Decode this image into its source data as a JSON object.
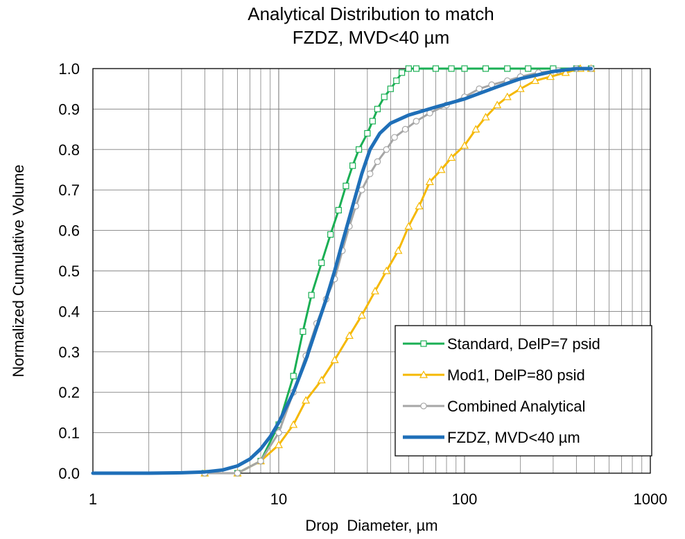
{
  "chart_data": {
    "type": "line",
    "title_lines": [
      "Analytical Distribution to match",
      "FZDZ, MVD<40 µm"
    ],
    "xlabel": "Drop  Diameter, µm",
    "ylabel": "Normalized Cumulative Volume",
    "x_scale": "log",
    "xlim": [
      1,
      1000
    ],
    "ylim": [
      0,
      1
    ],
    "x_ticks": [
      1,
      10,
      100,
      1000
    ],
    "x_tick_labels": [
      "1",
      "10",
      "100",
      "1000"
    ],
    "y_ticks": [
      0,
      0.1,
      0.2,
      0.3,
      0.4,
      0.5,
      0.6,
      0.7,
      0.8,
      0.9,
      1.0
    ],
    "y_tick_labels": [
      "0.0",
      "0.1",
      "0.2",
      "0.3",
      "0.4",
      "0.5",
      "0.6",
      "0.7",
      "0.8",
      "0.9",
      "1.0"
    ],
    "grid": true,
    "legend_position": "bottom-right",
    "series": [
      {
        "name": "Standard, DelP=7 psid",
        "color": "#1aaf54",
        "marker": "square",
        "points": [
          [
            4,
            0.0
          ],
          [
            6,
            0.0
          ],
          [
            8,
            0.03
          ],
          [
            10,
            0.12
          ],
          [
            12,
            0.24
          ],
          [
            13.5,
            0.35
          ],
          [
            15,
            0.44
          ],
          [
            17,
            0.52
          ],
          [
            19,
            0.59
          ],
          [
            21,
            0.65
          ],
          [
            23,
            0.71
          ],
          [
            25,
            0.76
          ],
          [
            27,
            0.8
          ],
          [
            30,
            0.84
          ],
          [
            32,
            0.87
          ],
          [
            34,
            0.9
          ],
          [
            37,
            0.93
          ],
          [
            40,
            0.95
          ],
          [
            43,
            0.97
          ],
          [
            46,
            0.99
          ],
          [
            50,
            1.0
          ],
          [
            55,
            1.0
          ],
          [
            70,
            1.0
          ],
          [
            85,
            1.0
          ],
          [
            100,
            1.0
          ],
          [
            130,
            1.0
          ],
          [
            170,
            1.0
          ],
          [
            220,
            1.0
          ],
          [
            300,
            1.0
          ],
          [
            400,
            1.0
          ],
          [
            480,
            1.0
          ]
        ]
      },
      {
        "name": "Mod1, DelP=80 psid",
        "color": "#f5b800",
        "marker": "triangle",
        "points": [
          [
            4,
            0.0
          ],
          [
            6,
            0.0
          ],
          [
            8,
            0.03
          ],
          [
            10,
            0.07
          ],
          [
            12,
            0.12
          ],
          [
            14,
            0.18
          ],
          [
            17,
            0.23
          ],
          [
            20,
            0.28
          ],
          [
            24,
            0.34
          ],
          [
            28,
            0.39
          ],
          [
            33,
            0.45
          ],
          [
            38,
            0.5
          ],
          [
            44,
            0.55
          ],
          [
            50,
            0.61
          ],
          [
            57,
            0.66
          ],
          [
            65,
            0.72
          ],
          [
            75,
            0.75
          ],
          [
            85,
            0.78
          ],
          [
            100,
            0.81
          ],
          [
            115,
            0.85
          ],
          [
            130,
            0.88
          ],
          [
            150,
            0.91
          ],
          [
            170,
            0.93
          ],
          [
            200,
            0.95
          ],
          [
            240,
            0.97
          ],
          [
            290,
            0.98
          ],
          [
            350,
            0.99
          ],
          [
            420,
            1.0
          ],
          [
            480,
            1.0
          ]
        ]
      },
      {
        "name": "Combined Analytical",
        "color": "#a6a6a6",
        "marker": "circle",
        "points": [
          [
            4,
            0.0
          ],
          [
            6,
            0.0
          ],
          [
            8,
            0.03
          ],
          [
            10,
            0.1
          ],
          [
            12,
            0.2
          ],
          [
            14,
            0.29
          ],
          [
            16,
            0.37
          ],
          [
            18,
            0.43
          ],
          [
            20,
            0.48
          ],
          [
            22,
            0.55
          ],
          [
            24,
            0.61
          ],
          [
            26,
            0.66
          ],
          [
            28,
            0.7
          ],
          [
            31,
            0.74
          ],
          [
            34,
            0.77
          ],
          [
            38,
            0.8
          ],
          [
            42,
            0.83
          ],
          [
            48,
            0.85
          ],
          [
            55,
            0.87
          ],
          [
            65,
            0.89
          ],
          [
            80,
            0.91
          ],
          [
            100,
            0.93
          ],
          [
            120,
            0.95
          ],
          [
            140,
            0.96
          ],
          [
            170,
            0.97
          ],
          [
            200,
            0.98
          ],
          [
            250,
            0.99
          ],
          [
            320,
            0.995
          ],
          [
            400,
            1.0
          ],
          [
            480,
            1.0
          ]
        ]
      },
      {
        "name": "FZDZ, MVD<40 µm",
        "color": "#1f6fb8",
        "marker": "none",
        "points": [
          [
            1,
            0.0
          ],
          [
            2,
            0.0
          ],
          [
            3,
            0.001
          ],
          [
            4,
            0.003
          ],
          [
            5,
            0.008
          ],
          [
            6,
            0.018
          ],
          [
            7,
            0.035
          ],
          [
            8,
            0.06
          ],
          [
            9,
            0.09
          ],
          [
            10,
            0.125
          ],
          [
            12,
            0.2
          ],
          [
            14,
            0.28
          ],
          [
            16,
            0.36
          ],
          [
            18,
            0.43
          ],
          [
            20,
            0.5
          ],
          [
            22,
            0.57
          ],
          [
            25,
            0.66
          ],
          [
            28,
            0.74
          ],
          [
            31,
            0.8
          ],
          [
            35,
            0.84
          ],
          [
            40,
            0.865
          ],
          [
            50,
            0.885
          ],
          [
            70,
            0.905
          ],
          [
            100,
            0.925
          ],
          [
            150,
            0.955
          ],
          [
            200,
            0.975
          ],
          [
            300,
            0.993
          ],
          [
            400,
            1.0
          ],
          [
            480,
            1.0
          ]
        ]
      }
    ]
  }
}
